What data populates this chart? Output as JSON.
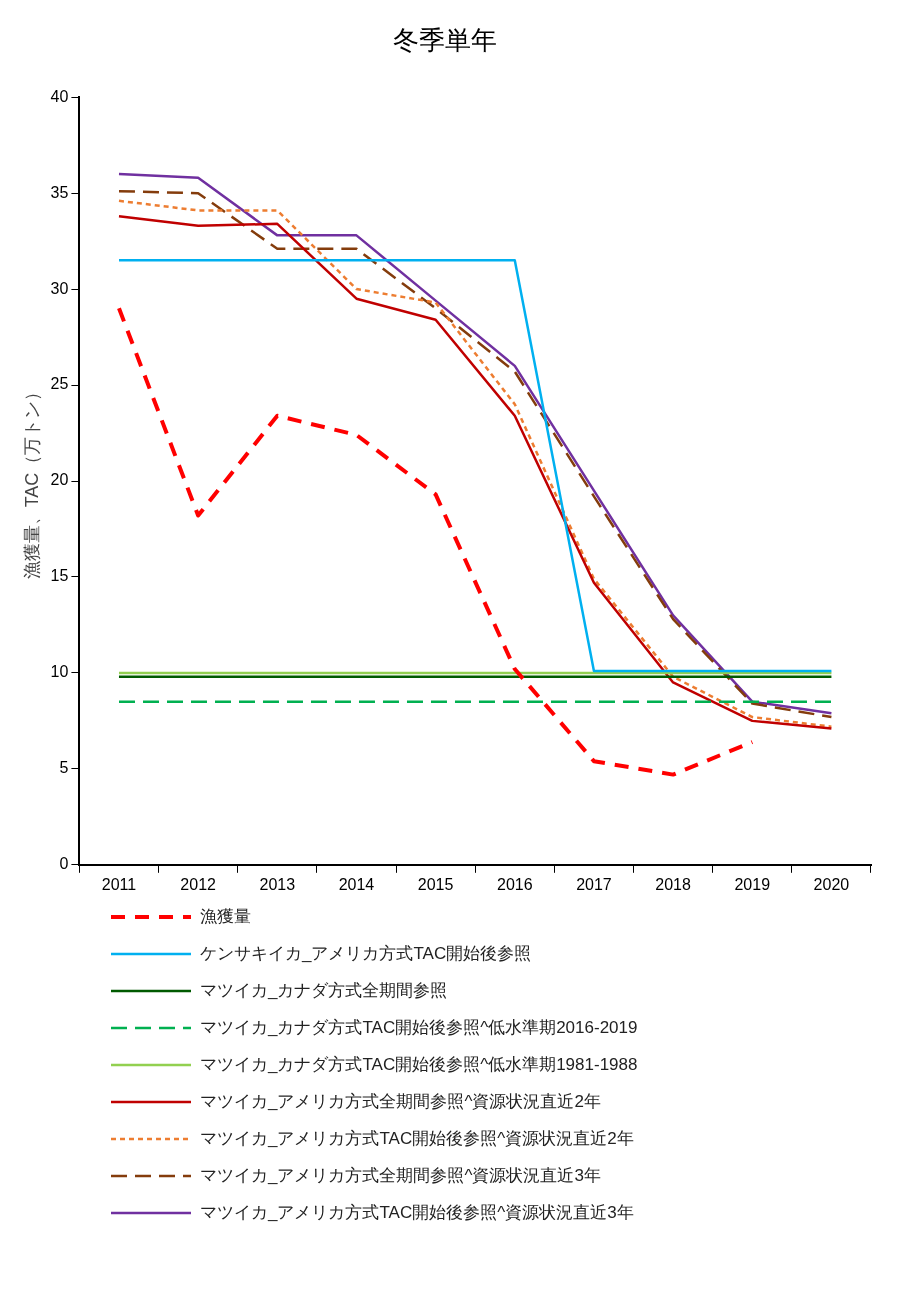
{
  "chart_data": {
    "type": "line",
    "title": "冬季単年",
    "ylabel": "漁獲量、TAC（万トン）",
    "categories": [
      "2011",
      "2012",
      "2013",
      "2014",
      "2015",
      "2016",
      "2017",
      "2018",
      "2019",
      "2020"
    ],
    "ylim": [
      0,
      40
    ],
    "yticks": [
      0,
      5,
      10,
      15,
      20,
      25,
      30,
      35,
      40
    ],
    "grid": false,
    "legend": "bottom",
    "marker": "none",
    "series": [
      {
        "name": "漁獲量",
        "color": "#ff0000",
        "line_style": "dashed",
        "values": [
          29.0,
          18.2,
          23.4,
          22.4,
          19.3,
          10.2,
          5.4,
          4.7,
          6.4,
          null
        ]
      },
      {
        "name": "ケンサキイカ_アメリカ方式TAC開始後参照",
        "color": "#00b0f0",
        "line_style": "solid",
        "values": [
          31.5,
          31.5,
          31.5,
          31.5,
          31.5,
          31.5,
          10.1,
          10.1,
          10.1,
          10.1
        ]
      },
      {
        "name": "マツイカ_カナダ方式全期間参照",
        "color": "#005a00",
        "line_style": "solid",
        "values": [
          9.8,
          9.8,
          9.8,
          9.8,
          9.8,
          9.8,
          9.8,
          9.8,
          9.8,
          9.8
        ]
      },
      {
        "name": "マツイカ_カナダ方式TAC開始後参照^低水準期2016-2019",
        "color": "#00b050",
        "line_style": "dashed",
        "values": [
          8.5,
          8.5,
          8.5,
          8.5,
          8.5,
          8.5,
          8.5,
          8.5,
          8.5,
          8.5
        ]
      },
      {
        "name": "マツイカ_カナダ方式TAC開始後参照^低水準期1981-1988",
        "color": "#92d050",
        "line_style": "solid",
        "values": [
          10.0,
          10.0,
          10.0,
          10.0,
          10.0,
          10.0,
          10.0,
          10.0,
          10.0,
          10.0
        ]
      },
      {
        "name": "マツイカ_アメリカ方式全期間参照^資源状況直近2年",
        "color": "#c00000",
        "line_style": "solid",
        "values": [
          33.8,
          33.3,
          33.4,
          29.5,
          28.4,
          23.4,
          14.7,
          9.5,
          7.5,
          7.1
        ]
      },
      {
        "name": "マツイカ_アメリカ方式TAC開始後参照^資源状況直近2年",
        "color": "#ed7d31",
        "line_style": "dotted",
        "values": [
          34.6,
          34.1,
          34.1,
          30.0,
          29.3,
          24.0,
          14.9,
          9.8,
          7.7,
          7.2
        ]
      },
      {
        "name": "マツイカ_アメリカ方式全期間参照^資源状況直近3年",
        "color": "#843c0c",
        "line_style": "dashed",
        "values": [
          35.1,
          35.0,
          32.1,
          32.1,
          29.0,
          25.7,
          19.2,
          12.8,
          8.4,
          7.7
        ]
      },
      {
        "name": "マツイカ_アメリカ方式TAC開始後参照^資源状況直近3年",
        "color": "#7030a0",
        "line_style": "solid",
        "values": [
          36.0,
          35.8,
          32.8,
          32.8,
          29.4,
          26.0,
          19.5,
          13.0,
          8.5,
          7.9
        ]
      }
    ]
  }
}
